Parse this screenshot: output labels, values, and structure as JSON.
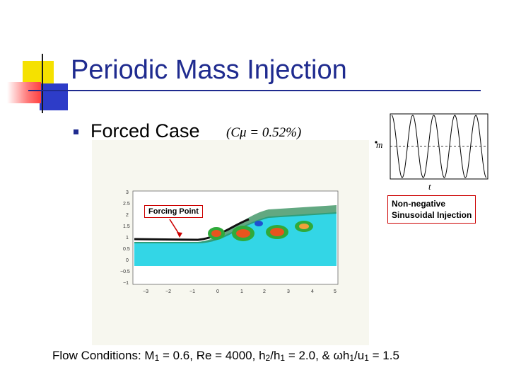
{
  "slide": {
    "title": "Periodic Mass Injection",
    "bullet": {
      "text": "Forced Case",
      "parameter": "(Cμ = 0.52%)"
    },
    "contour_plot": {
      "annotation": "Forcing Point",
      "y_ticks": [
        "3",
        "2.5",
        "2",
        "1.5",
        "1",
        "0.5",
        "0",
        "−0.5",
        "−1"
      ],
      "x_ticks": [
        "−3",
        "−2",
        "−1",
        "0",
        "1",
        "2",
        "3",
        "4",
        "5"
      ]
    },
    "injection_signal": {
      "y_label": "m",
      "x_label": "t",
      "caption_line1": "Non-negative",
      "caption_line2": "Sinusoidal Injection"
    },
    "flow_conditions": {
      "prefix": "Flow Conditions: M",
      "m_sub": "1",
      "m_val": " = 0.6, Re = 4000, h",
      "h2": "2",
      "slash": "/h",
      "h1": "1",
      "h_val": " = 2.0, & ωh",
      "omega_sub": "1",
      "u_part": "/u",
      "u_sub": "1",
      "final": " = 1.5"
    },
    "colors": {
      "title": "#1f2b8f",
      "flow_field": "#33d6e6",
      "vortex": "#e8541e",
      "callout_border": "#cc0000"
    }
  }
}
